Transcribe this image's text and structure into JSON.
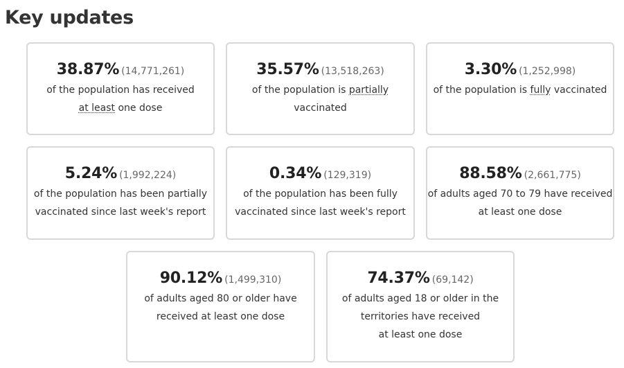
{
  "heading": "Key updates",
  "cards": [
    {
      "percent": "38.87%",
      "count": "(14,771,261)",
      "line1": "of the population has received",
      "line2_underlined": "at least",
      "line2_rest": " one dose"
    },
    {
      "percent": "35.57%",
      "count": "(13,518,263)",
      "text_before": "of the population is ",
      "text_underlined": "partially",
      "text_after": " vaccinated"
    },
    {
      "percent": "3.30%",
      "count": "(1,252,998)",
      "text_before": "of the population is ",
      "text_underlined": "fully",
      "text_after": " vaccinated"
    },
    {
      "percent": "5.24%",
      "count": "(1,992,224)",
      "line1": "of the population has been partially",
      "line2": "vaccinated since last week's report"
    },
    {
      "percent": "0.34%",
      "count": "(129,319)",
      "line1": "of the population has been fully",
      "line2": "vaccinated since last week's report"
    },
    {
      "percent": "88.58%",
      "count": "(2,661,775)",
      "line1": "of adults aged 70 to 79 have received",
      "line2": "at least one dose"
    },
    {
      "percent": "90.12%",
      "count": "(1,499,310)",
      "line1": "of adults aged 80 or older have",
      "line2": "received at least one dose"
    },
    {
      "percent": "74.37%",
      "count": "(69,142)",
      "line1": "of adults aged 18 or older in the",
      "line2": "territories have received",
      "line3": "at least one dose"
    }
  ]
}
